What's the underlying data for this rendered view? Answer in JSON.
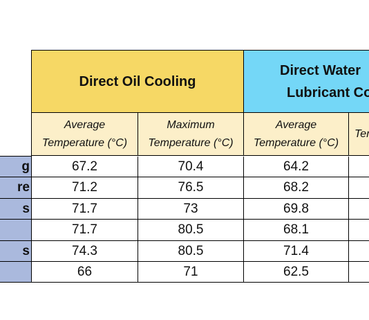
{
  "table": {
    "groups": [
      {
        "label": "Direct Oil Cooling"
      },
      {
        "label_line1": "Direct Water",
        "label_line2": "Lubricant Co"
      }
    ],
    "subheaders": [
      {
        "line1": "Average",
        "line2": "Temperature (°C)"
      },
      {
        "line1": "Maximum",
        "line2": "Temperature (°C)"
      },
      {
        "line1": "Average",
        "line2": "Temperature (°C)"
      },
      {
        "line1": "",
        "line2": "Ter"
      }
    ],
    "rows": [
      {
        "label": "g",
        "values": [
          "67.2",
          "70.4",
          "64.2"
        ]
      },
      {
        "label": "re",
        "values": [
          "71.2",
          "76.5",
          "68.2"
        ]
      },
      {
        "label": "s",
        "values": [
          "71.7",
          "73",
          "69.8"
        ]
      },
      {
        "label": "",
        "values": [
          "71.7",
          "80.5",
          "68.1"
        ]
      },
      {
        "label": "s",
        "values": [
          "74.3",
          "80.5",
          "71.4"
        ]
      },
      {
        "label": "",
        "values": [
          "66",
          "71",
          "62.5"
        ]
      }
    ]
  },
  "colors": {
    "oil_header": "#f6d865",
    "water_header": "#74d7f7",
    "subheader": "#fcefc9",
    "row_label": "#aab9dd"
  }
}
